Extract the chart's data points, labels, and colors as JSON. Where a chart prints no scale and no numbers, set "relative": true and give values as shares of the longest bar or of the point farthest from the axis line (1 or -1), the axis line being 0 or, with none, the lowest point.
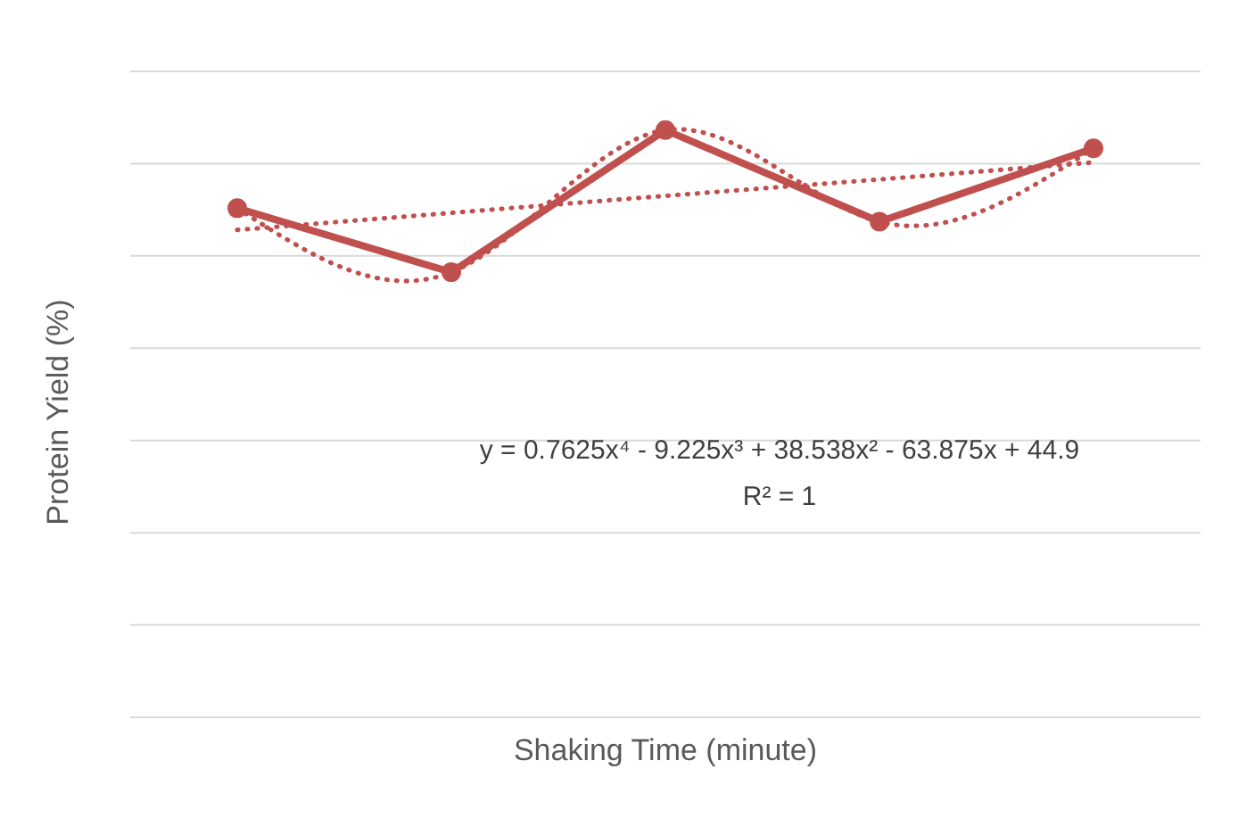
{
  "chart_data": {
    "type": "line",
    "relative": true,
    "xlabel": "Shaking Time (minute)",
    "ylabel": "Protein Yield (%)",
    "categories": [
      null,
      null,
      null,
      null,
      null
    ],
    "grid": "y",
    "series": [
      {
        "color": "#c0504d",
        "values": [
          0.867,
          0.758,
          1,
          0.844,
          0.969
        ],
        "marker": "circle",
        "line_style": "solid"
      },
      {
        "type": "line",
        "color": "#c0504d",
        "values": [
          0.867,
          0.758,
          1,
          0.844,
          0.969
        ],
        "marker": "none",
        "line_style": "dotted"
      },
      {
        "type": "line",
        "color": "#c0504d",
        "values": [
          0.83,
          0.859,
          0.888,
          0.916,
          0.945
        ],
        "marker": "none",
        "line_style": "dotted"
      }
    ],
    "annotations": [
      "y = 0.7625x⁴ - 9.225x³ + 38.538x² - 63.875x + 44.9",
      "R² = 1"
    ]
  }
}
